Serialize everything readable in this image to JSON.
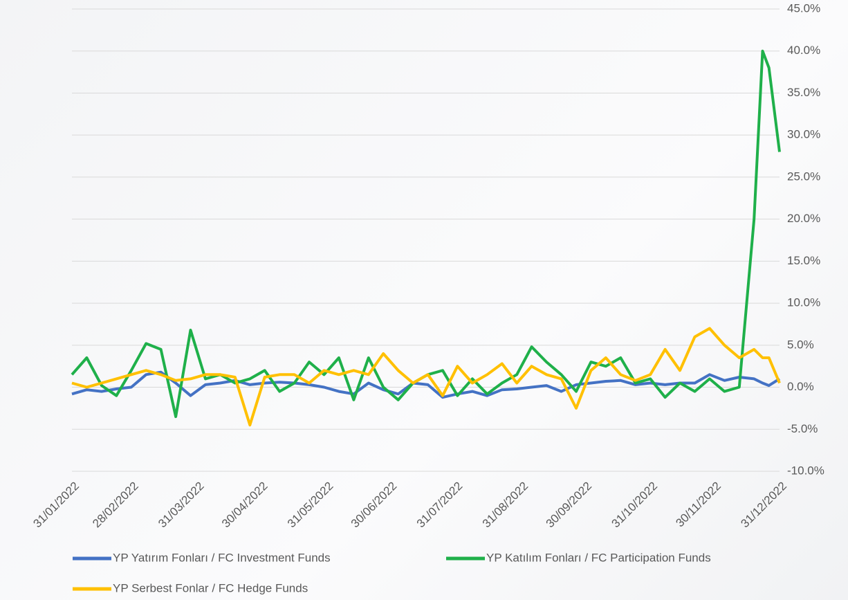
{
  "chart_data": {
    "type": "line",
    "x": [
      "31/01/2022",
      "07/02/2022",
      "14/02/2022",
      "21/02/2022",
      "28/02/2022",
      "07/03/2022",
      "14/03/2022",
      "21/03/2022",
      "28/03/2022",
      "04/04/2022",
      "11/04/2022",
      "18/04/2022",
      "25/04/2022",
      "02/05/2022",
      "09/05/2022",
      "16/05/2022",
      "23/05/2022",
      "30/05/2022",
      "06/06/2022",
      "13/06/2022",
      "20/06/2022",
      "27/06/2022",
      "04/07/2022",
      "11/07/2022",
      "18/07/2022",
      "25/07/2022",
      "01/08/2022",
      "08/08/2022",
      "15/08/2022",
      "22/08/2022",
      "29/08/2022",
      "05/09/2022",
      "12/09/2022",
      "19/09/2022",
      "26/09/2022",
      "03/10/2022",
      "10/10/2022",
      "17/10/2022",
      "24/10/2022",
      "31/10/2022",
      "07/11/2022",
      "14/11/2022",
      "21/11/2022",
      "28/11/2022",
      "05/12/2022",
      "12/12/2022",
      "19/12/2022",
      "23/12/2022",
      "26/12/2022",
      "31/12/2022"
    ],
    "series": [
      {
        "name": "YP Yatırım Fonları / FC Investment Funds",
        "color": "#4472c4",
        "values": [
          -0.8,
          -0.3,
          -0.5,
          -0.2,
          0,
          1.5,
          1.8,
          0.5,
          -1.0,
          0.3,
          0.5,
          0.8,
          0.3,
          0.5,
          0.6,
          0.5,
          0.3,
          0,
          -0.5,
          -0.8,
          0.5,
          -0.3,
          -0.8,
          0.5,
          0.3,
          -1.2,
          -0.8,
          -0.5,
          -1.0,
          -0.3,
          -0.2,
          0,
          0.2,
          -0.5,
          0.3,
          0.5,
          0.7,
          0.8,
          0.3,
          0.5,
          0.3,
          0.5,
          0.5,
          1.5,
          0.8,
          1.2,
          1.0,
          0.5,
          0.2,
          1.0
        ]
      },
      {
        "name": "YP Katılım Fonları / FC Participation Funds",
        "color": "#1fb04a",
        "values": [
          1.5,
          3.5,
          0.2,
          -1.0,
          2.0,
          5.2,
          4.5,
          -3.5,
          6.8,
          1.0,
          1.5,
          0.5,
          1.0,
          2.0,
          -0.5,
          0.5,
          3.0,
          1.5,
          3.5,
          -1.5,
          3.5,
          0,
          -1.5,
          0.5,
          1.5,
          2.0,
          -1.0,
          1.0,
          -0.8,
          0.5,
          1.5,
          4.8,
          3.0,
          1.5,
          -0.5,
          3.0,
          2.5,
          3.5,
          0.5,
          1.0,
          -1.2,
          0.5,
          -0.5,
          1.0,
          -0.5,
          0,
          20,
          40,
          38,
          28
        ]
      },
      {
        "name": "YP Serbest Fonlar / FC Hedge Funds",
        "color": "#ffc000",
        "values": [
          0.5,
          0,
          0.5,
          1.0,
          1.5,
          2.0,
          1.5,
          0.8,
          1.0,
          1.5,
          1.5,
          1.2,
          -4.5,
          1.2,
          1.5,
          1.5,
          0.5,
          2.0,
          1.5,
          2.0,
          1.5,
          4.0,
          2.0,
          0.5,
          1.5,
          -1.0,
          2.5,
          0.5,
          1.5,
          2.8,
          0.5,
          2.5,
          1.5,
          1.0,
          -2.5,
          2.0,
          3.5,
          1.5,
          0.8,
          1.5,
          4.5,
          2.0,
          6.0,
          7.0,
          5.0,
          3.5,
          4.5,
          3.5,
          3.5,
          0.5
        ]
      }
    ],
    "xlim": [
      "31/01/2022",
      "31/12/2022"
    ],
    "xticks": [
      "31/01/2022",
      "28/02/2022",
      "31/03/2022",
      "30/04/2022",
      "31/05/2022",
      "30/06/2022",
      "31/07/2022",
      "31/08/2022",
      "30/09/2022",
      "31/10/2022",
      "30/11/2022",
      "31/12/2022"
    ],
    "ylim": [
      -10,
      45
    ],
    "yticks": [
      {
        "value": -10,
        "label": "-10.0%"
      },
      {
        "value": -5,
        "label": "-5.0%"
      },
      {
        "value": 0,
        "label": "0.0%"
      },
      {
        "value": 5,
        "label": "5.0%"
      },
      {
        "value": 10,
        "label": "10.0%"
      },
      {
        "value": 15,
        "label": "15.0%"
      },
      {
        "value": 20,
        "label": "20.0%"
      },
      {
        "value": 25,
        "label": "25.0%"
      },
      {
        "value": 30,
        "label": "30.0%"
      },
      {
        "value": 35,
        "label": "35.0%"
      },
      {
        "value": 40,
        "label": "40.0%"
      },
      {
        "value": 45,
        "label": "45.0%"
      }
    ],
    "grid": true
  }
}
